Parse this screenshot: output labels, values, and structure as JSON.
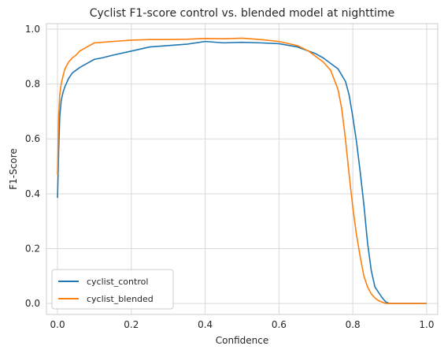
{
  "chart_data": {
    "type": "line",
    "title": "Cyclist F1-score control vs. blended model at nighttime",
    "xlabel": "Confidence",
    "ylabel": "F1-Score",
    "xlim": [
      -0.03,
      1.03
    ],
    "ylim": [
      -0.04,
      1.02
    ],
    "xticks": [
      0.0,
      0.2,
      0.4,
      0.6,
      0.8,
      1.0
    ],
    "xtick_labels": [
      "0.0",
      "0.2",
      "0.4",
      "0.6",
      "0.8",
      "1.0"
    ],
    "yticks": [
      0.0,
      0.2,
      0.4,
      0.6,
      0.8,
      1.0
    ],
    "ytick_labels": [
      "0.0",
      "0.2",
      "0.4",
      "0.6",
      "0.8",
      "1.0"
    ],
    "grid": true,
    "legend_position": "lower-left",
    "series": [
      {
        "name": "cyclist_control",
        "color": "#1f77b4",
        "x": [
          0.0,
          0.003,
          0.006,
          0.01,
          0.015,
          0.02,
          0.03,
          0.04,
          0.05,
          0.06,
          0.08,
          0.1,
          0.12,
          0.15,
          0.2,
          0.25,
          0.3,
          0.35,
          0.4,
          0.45,
          0.5,
          0.55,
          0.6,
          0.65,
          0.68,
          0.7,
          0.72,
          0.74,
          0.76,
          0.78,
          0.79,
          0.8,
          0.81,
          0.82,
          0.83,
          0.84,
          0.85,
          0.86,
          0.87,
          0.88,
          0.89,
          0.9,
          0.95,
          1.0
        ],
        "y": [
          0.385,
          0.55,
          0.68,
          0.74,
          0.77,
          0.79,
          0.82,
          0.84,
          0.85,
          0.86,
          0.875,
          0.89,
          0.895,
          0.905,
          0.92,
          0.935,
          0.94,
          0.945,
          0.955,
          0.95,
          0.952,
          0.95,
          0.947,
          0.935,
          0.92,
          0.91,
          0.895,
          0.875,
          0.855,
          0.81,
          0.76,
          0.68,
          0.59,
          0.48,
          0.36,
          0.22,
          0.12,
          0.06,
          0.04,
          0.02,
          0.005,
          0.0,
          0.0,
          0.0
        ]
      },
      {
        "name": "cyclist_blended",
        "color": "#ff7f0e",
        "x": [
          0.0,
          0.003,
          0.006,
          0.01,
          0.015,
          0.02,
          0.03,
          0.04,
          0.05,
          0.06,
          0.08,
          0.1,
          0.12,
          0.15,
          0.2,
          0.25,
          0.3,
          0.35,
          0.4,
          0.45,
          0.5,
          0.55,
          0.6,
          0.65,
          0.68,
          0.7,
          0.72,
          0.74,
          0.76,
          0.77,
          0.78,
          0.79,
          0.8,
          0.81,
          0.82,
          0.83,
          0.84,
          0.85,
          0.86,
          0.87,
          0.88,
          0.89,
          0.9,
          0.95,
          1.0
        ],
        "y": [
          0.47,
          0.68,
          0.76,
          0.8,
          0.83,
          0.855,
          0.88,
          0.895,
          0.905,
          0.92,
          0.935,
          0.95,
          0.952,
          0.955,
          0.96,
          0.962,
          0.962,
          0.963,
          0.966,
          0.965,
          0.967,
          0.962,
          0.955,
          0.94,
          0.92,
          0.9,
          0.88,
          0.85,
          0.78,
          0.71,
          0.6,
          0.47,
          0.35,
          0.25,
          0.17,
          0.1,
          0.06,
          0.035,
          0.02,
          0.01,
          0.005,
          0.0,
          0.0,
          0.0,
          0.0
        ]
      }
    ]
  }
}
